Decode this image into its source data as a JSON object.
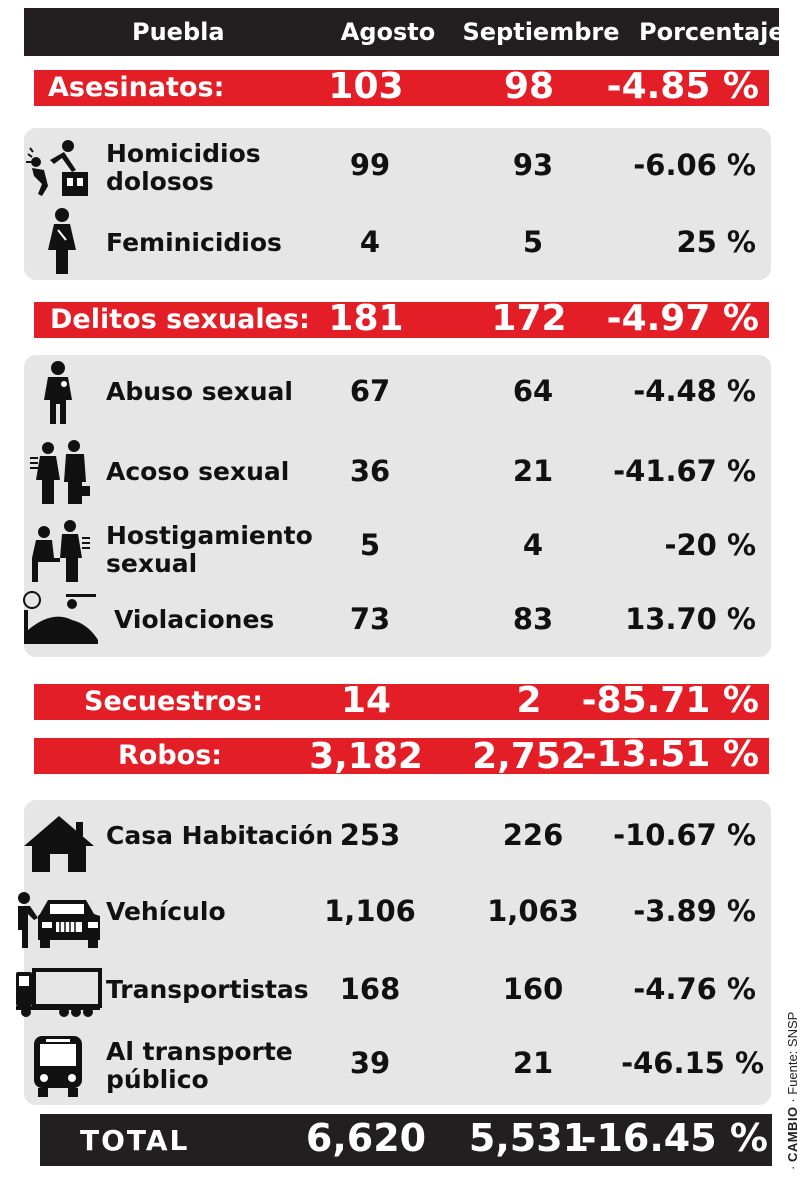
{
  "header": {
    "region": "Puebla",
    "col1": "Agosto",
    "col2": "Septiembre",
    "col3": "Porcentaje"
  },
  "asesinatos": {
    "summary": {
      "label": "Asesinatos:",
      "aug": "103",
      "sep": "98",
      "pct": "-4.85 %"
    },
    "rows": [
      {
        "label": "Homicidios dolosos",
        "aug": "99",
        "sep": "93",
        "pct": "-6.06 %"
      },
      {
        "label": "Feminicidios",
        "aug": "4",
        "sep": "5",
        "pct": "25 %"
      }
    ]
  },
  "delitos": {
    "summary": {
      "label": "Delitos sexuales:",
      "aug": "181",
      "sep": "172",
      "pct": "-4.97 %"
    },
    "rows": [
      {
        "label": "Abuso sexual",
        "aug": "67",
        "sep": "64",
        "pct": "-4.48 %"
      },
      {
        "label": "Acoso sexual",
        "aug": "36",
        "sep": "21",
        "pct": "-41.67 %"
      },
      {
        "label": "Hostigamiento sexual",
        "aug": "5",
        "sep": "4",
        "pct": "-20 %"
      },
      {
        "label": "Violaciones",
        "aug": "73",
        "sep": "83",
        "pct": "13.70 %"
      }
    ]
  },
  "secuestros": {
    "summary": {
      "label": "Secuestros:",
      "aug": "14",
      "sep": "2",
      "pct": "-85.71 %"
    }
  },
  "robos": {
    "summary": {
      "label": "Robos:",
      "aug": "3,182",
      "sep": "2,752",
      "pct": "-13.51 %"
    },
    "rows": [
      {
        "label": "Casa Habitación",
        "aug": "253",
        "sep": "226",
        "pct": "-10.67 %"
      },
      {
        "label": "Vehículo",
        "aug": "1,106",
        "sep": "1,063",
        "pct": "-3.89 %"
      },
      {
        "label": "Transportistas",
        "aug": "168",
        "sep": "160",
        "pct": "-4.76 %"
      },
      {
        "label": "Al transporte público",
        "aug": "39",
        "sep": "21",
        "pct": "-46.15 %"
      }
    ]
  },
  "total": {
    "label": "TOTAL",
    "aug": "6,620",
    "sep": "5,531",
    "pct": "-16.45 %"
  },
  "credit": {
    "brand": "CAMBIO",
    "source": "Fuente: SNSP"
  },
  "icons": [
    "homicide-icon",
    "feminicide-icon",
    "abuse-icon",
    "harassment-icon",
    "hostigamiento-icon",
    "violation-icon",
    "house-icon",
    "car-icon",
    "truck-icon",
    "bus-icon"
  ],
  "colors": {
    "red": "#e41e26",
    "dark": "#231f20",
    "panel": "#e6e6e6"
  }
}
